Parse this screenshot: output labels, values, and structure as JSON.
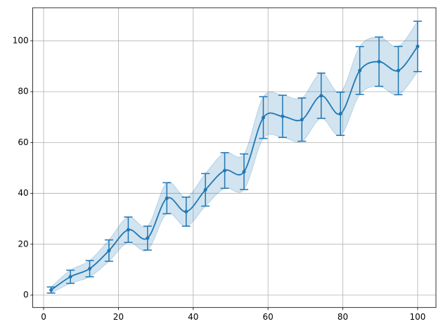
{
  "chart_data": {
    "type": "line",
    "x": [
      2,
      7.16,
      12.32,
      17.47,
      22.63,
      27.79,
      32.95,
      38.11,
      43.26,
      48.42,
      53.58,
      58.74,
      63.89,
      69.05,
      74.21,
      79.37,
      84.53,
      89.68,
      94.84,
      100
    ],
    "series": [
      {
        "color": "#1f77b4",
        "values": [
          2,
          7.2,
          10.4,
          17.5,
          25.7,
          22.4,
          38.1,
          32.8,
          41.4,
          49,
          48.5,
          69.8,
          70.3,
          69,
          78.4,
          71.3,
          88.3,
          91.8,
          88.3,
          97.8
        ],
        "errors": [
          1.2,
          2.6,
          3.2,
          4.2,
          5,
          4.7,
          6.1,
          5.7,
          6.4,
          7,
          7,
          8.2,
          8.3,
          8.5,
          8.9,
          8.5,
          9.4,
          9.7,
          9.5,
          9.9
        ]
      }
    ],
    "xlim": [
      -2.9,
      104.9
    ],
    "ylim": [
      -4.9,
      113
    ],
    "xticks": [
      0,
      20,
      40,
      60,
      80,
      100
    ],
    "yticks": [
      0,
      20,
      40,
      60,
      80,
      100
    ],
    "grid": true,
    "band": true
  }
}
